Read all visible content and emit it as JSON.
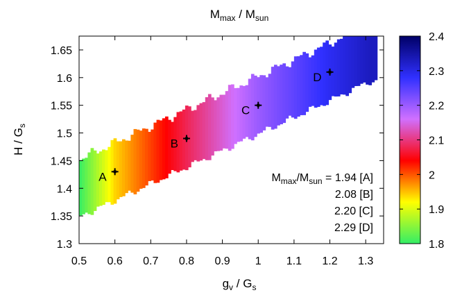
{
  "chart_data": {
    "type": "heatmap",
    "title": {
      "main": "M",
      "sub1": "max",
      "sep": " / M",
      "sub2": "sun"
    },
    "xlabel": {
      "main": "g",
      "sub1": "v",
      "sep": " / G",
      "sub2": "s"
    },
    "ylabel": {
      "main": "H / G",
      "sub": "s"
    },
    "xlim": [
      0.5,
      1.35
    ],
    "ylim": [
      1.3,
      1.675
    ],
    "x_ticks": [
      "0.5",
      "0.6",
      "0.7",
      "0.8",
      "0.9",
      "1",
      "1.1",
      "1.2",
      "1.3"
    ],
    "y_ticks": [
      "1.3",
      "1.35",
      "1.4",
      "1.45",
      "1.5",
      "1.55",
      "1.6",
      "1.65"
    ],
    "colorbar": {
      "range": [
        1.8,
        2.4
      ],
      "ticks": [
        "1.8",
        "1.9",
        "2",
        "2.1",
        "2.2",
        "2.3",
        "2.4"
      ],
      "stops": [
        "#33ee66",
        "#ffff00",
        "#ff0000",
        "#d070ff",
        "#3030ff",
        "#000066"
      ]
    },
    "band": {
      "description_values": "allowed region of (g_v/G_s, H/G_s); color = M_max/M_sun",
      "centerline": [
        [
          0.5,
          1.4
        ],
        [
          0.6,
          1.43
        ],
        [
          0.8,
          1.49
        ],
        [
          1.0,
          1.55
        ],
        [
          1.2,
          1.61
        ],
        [
          1.31,
          1.645
        ]
      ],
      "half_width": 0.052,
      "color_values": [
        [
          0.5,
          1.8
        ],
        [
          0.6,
          1.94
        ],
        [
          0.8,
          2.08
        ],
        [
          1.0,
          2.2
        ],
        [
          1.2,
          2.29
        ],
        [
          1.31,
          2.33
        ]
      ]
    },
    "points": [
      {
        "label": "A",
        "x": 0.6,
        "y": 1.43,
        "value": 1.94
      },
      {
        "label": "B",
        "x": 0.8,
        "y": 1.49,
        "value": 2.08
      },
      {
        "label": "C",
        "x": 1.0,
        "y": 1.55,
        "value": 2.2
      },
      {
        "label": "D",
        "x": 1.2,
        "y": 1.61,
        "value": 2.29
      }
    ],
    "annotation": {
      "line1_main": "M",
      "line1_sub1": "max",
      "line1_sep": "/M",
      "line1_sub2": "sun",
      "line1_value": " = 1.94 [A]",
      "lines": [
        "2.08 [B]",
        "2.20 [C]",
        "2.29 [D]"
      ]
    }
  }
}
